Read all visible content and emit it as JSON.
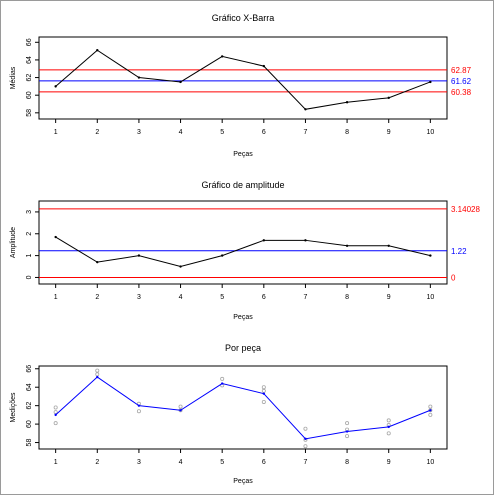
{
  "chart_data": [
    {
      "type": "line",
      "title": "Gráfico X-Barra",
      "xlabel": "Peças",
      "ylabel": "Médias",
      "x": [
        1,
        2,
        3,
        4,
        5,
        6,
        7,
        8,
        9,
        10
      ],
      "x_ticks": [
        "1",
        "2",
        "3",
        "4",
        "5",
        "6",
        "7",
        "8",
        "9",
        "10"
      ],
      "y_ticks": [
        58,
        60,
        62,
        64,
        66
      ],
      "y_tick_labels": [
        "58",
        "60",
        "62",
        "64",
        "66"
      ],
      "ylim": [
        57.3,
        66.6
      ],
      "series": [
        {
          "values": [
            61.0,
            65.1,
            62.0,
            61.5,
            64.4,
            63.3,
            58.4,
            59.2,
            59.7,
            61.5
          ],
          "color": "#000000"
        }
      ],
      "reference_lines": [
        {
          "label": "62.87",
          "value": 62.87,
          "color": "#ff0000"
        },
        {
          "label": "61.62",
          "value": 61.62,
          "color": "#0000ff"
        },
        {
          "label": "60.38",
          "value": 60.38,
          "color": "#ff0000"
        }
      ]
    },
    {
      "type": "line",
      "title": "Gráfico de amplitude",
      "xlabel": "Peças",
      "ylabel": "Amplitude",
      "x": [
        1,
        2,
        3,
        4,
        5,
        6,
        7,
        8,
        9,
        10
      ],
      "x_ticks": [
        "1",
        "2",
        "3",
        "4",
        "5",
        "6",
        "7",
        "8",
        "9",
        "10"
      ],
      "y_ticks": [
        0,
        1,
        2,
        3
      ],
      "y_tick_labels": [
        "0",
        "1",
        "2",
        "3"
      ],
      "ylim": [
        -0.3,
        3.5
      ],
      "series": [
        {
          "values": [
            1.85,
            0.7,
            1.0,
            0.5,
            1.0,
            1.7,
            1.7,
            1.45,
            1.45,
            1.0
          ],
          "color": "#000000"
        }
      ],
      "reference_lines": [
        {
          "label": "3.14028",
          "value": 3.14028,
          "color": "#ff0000"
        },
        {
          "label": "1.22",
          "value": 1.22,
          "color": "#0000ff"
        },
        {
          "label": "0",
          "value": 0,
          "color": "#ff0000"
        }
      ]
    },
    {
      "type": "line",
      "title": "Por peça",
      "xlabel": "Peças",
      "ylabel": "Medições",
      "x": [
        1,
        2,
        3,
        4,
        5,
        6,
        7,
        8,
        9,
        10
      ],
      "x_ticks": [
        "1",
        "2",
        "3",
        "4",
        "5",
        "6",
        "7",
        "8",
        "9",
        "10"
      ],
      "y_ticks": [
        58,
        60,
        62,
        64,
        66
      ],
      "y_tick_labels": [
        "58",
        "60",
        "62",
        "64",
        "66"
      ],
      "ylim": [
        57.3,
        66.3
      ],
      "series": [
        {
          "values": [
            61.0,
            65.1,
            62.0,
            61.5,
            64.4,
            63.3,
            58.4,
            59.2,
            59.7,
            61.5
          ],
          "color": "#0000ff"
        }
      ],
      "points": [
        [
          1,
          60.1
        ],
        [
          1,
          61.3
        ],
        [
          1,
          61.8
        ],
        [
          2,
          65.4
        ],
        [
          2,
          65.8
        ],
        [
          3,
          61.4
        ],
        [
          3,
          62.2
        ],
        [
          4,
          61.5
        ],
        [
          4,
          61.9
        ],
        [
          5,
          64.2
        ],
        [
          5,
          64.9
        ],
        [
          6,
          62.4
        ],
        [
          6,
          63.6
        ],
        [
          6,
          64.0
        ],
        [
          7,
          57.6
        ],
        [
          7,
          58.3
        ],
        [
          7,
          59.5
        ],
        [
          8,
          58.7
        ],
        [
          8,
          59.4
        ],
        [
          8,
          60.1
        ],
        [
          9,
          59.0
        ],
        [
          9,
          59.9
        ],
        [
          9,
          60.4
        ],
        [
          10,
          61.0
        ],
        [
          10,
          61.5
        ],
        [
          10,
          61.9
        ]
      ],
      "point_color": "#a8a8a8"
    }
  ]
}
